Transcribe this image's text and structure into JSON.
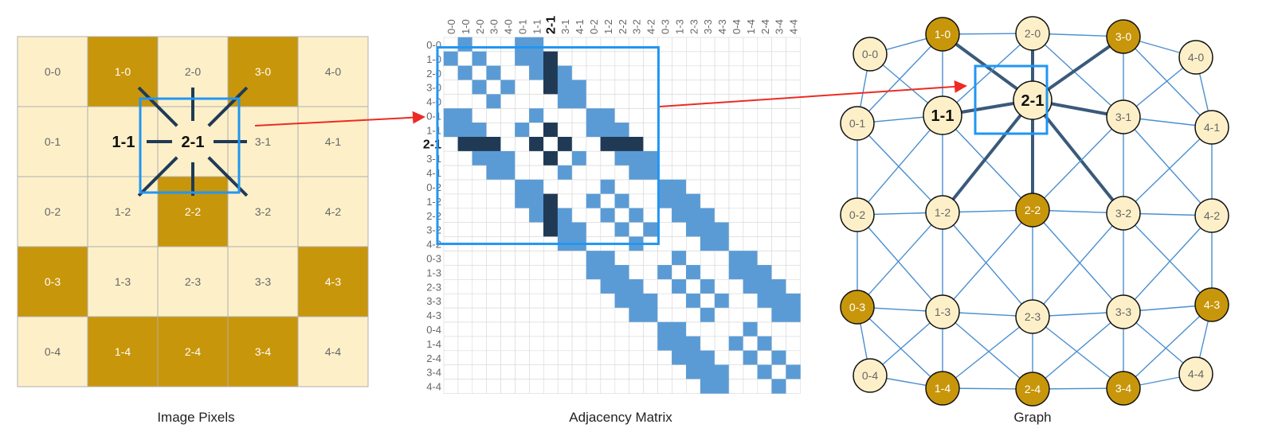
{
  "captions": {
    "image_pixels": "Image Pixels",
    "adjacency_matrix": "Adjacency Matrix",
    "graph": "Graph"
  },
  "focus": {
    "node": "2-1",
    "neighbor_label": "1-1"
  },
  "colors": {
    "pixel_light": "#fdf0c9",
    "pixel_dark": "#c8960a",
    "pixel_border": "#b0b0b0",
    "highlight_box": "#2196f3",
    "matrix_cell": "#5b9bd5",
    "matrix_cell_focus": "#203a56",
    "graph_edge": "#4a8fd0",
    "graph_edge_focus": "#3a5a7a",
    "arrow": "#ee2a24"
  },
  "pixels": {
    "rows": [
      [
        "0-0",
        "1-0",
        "2-0",
        "3-0",
        "4-0"
      ],
      [
        "0-1",
        "1-1",
        "2-1",
        "3-1",
        "4-1"
      ],
      [
        "0-2",
        "1-2",
        "2-2",
        "3-2",
        "4-2"
      ],
      [
        "0-3",
        "1-3",
        "2-3",
        "3-3",
        "4-3"
      ],
      [
        "0-4",
        "1-4",
        "2-4",
        "3-4",
        "4-4"
      ]
    ],
    "dark": [
      "1-0",
      "3-0",
      "2-2",
      "0-3",
      "4-3",
      "1-4",
      "2-4",
      "3-4"
    ]
  },
  "matrix": {
    "labels": [
      "0-0",
      "1-0",
      "2-0",
      "3-0",
      "4-0",
      "0-1",
      "1-1",
      "2-1",
      "3-1",
      "4-1",
      "0-2",
      "1-2",
      "2-2",
      "3-2",
      "4-2",
      "0-3",
      "1-3",
      "2-3",
      "3-3",
      "4-3",
      "0-4",
      "1-4",
      "2-4",
      "3-4",
      "4-4"
    ],
    "focus_index": 7
  },
  "graph": {
    "nodes": [
      "0-0",
      "1-0",
      "2-0",
      "3-0",
      "4-0",
      "0-1",
      "1-1",
      "2-1",
      "3-1",
      "4-1",
      "0-2",
      "1-2",
      "2-2",
      "3-2",
      "4-2",
      "0-3",
      "1-3",
      "2-3",
      "3-3",
      "4-3",
      "0-4",
      "1-4",
      "2-4",
      "3-4",
      "4-4"
    ]
  }
}
